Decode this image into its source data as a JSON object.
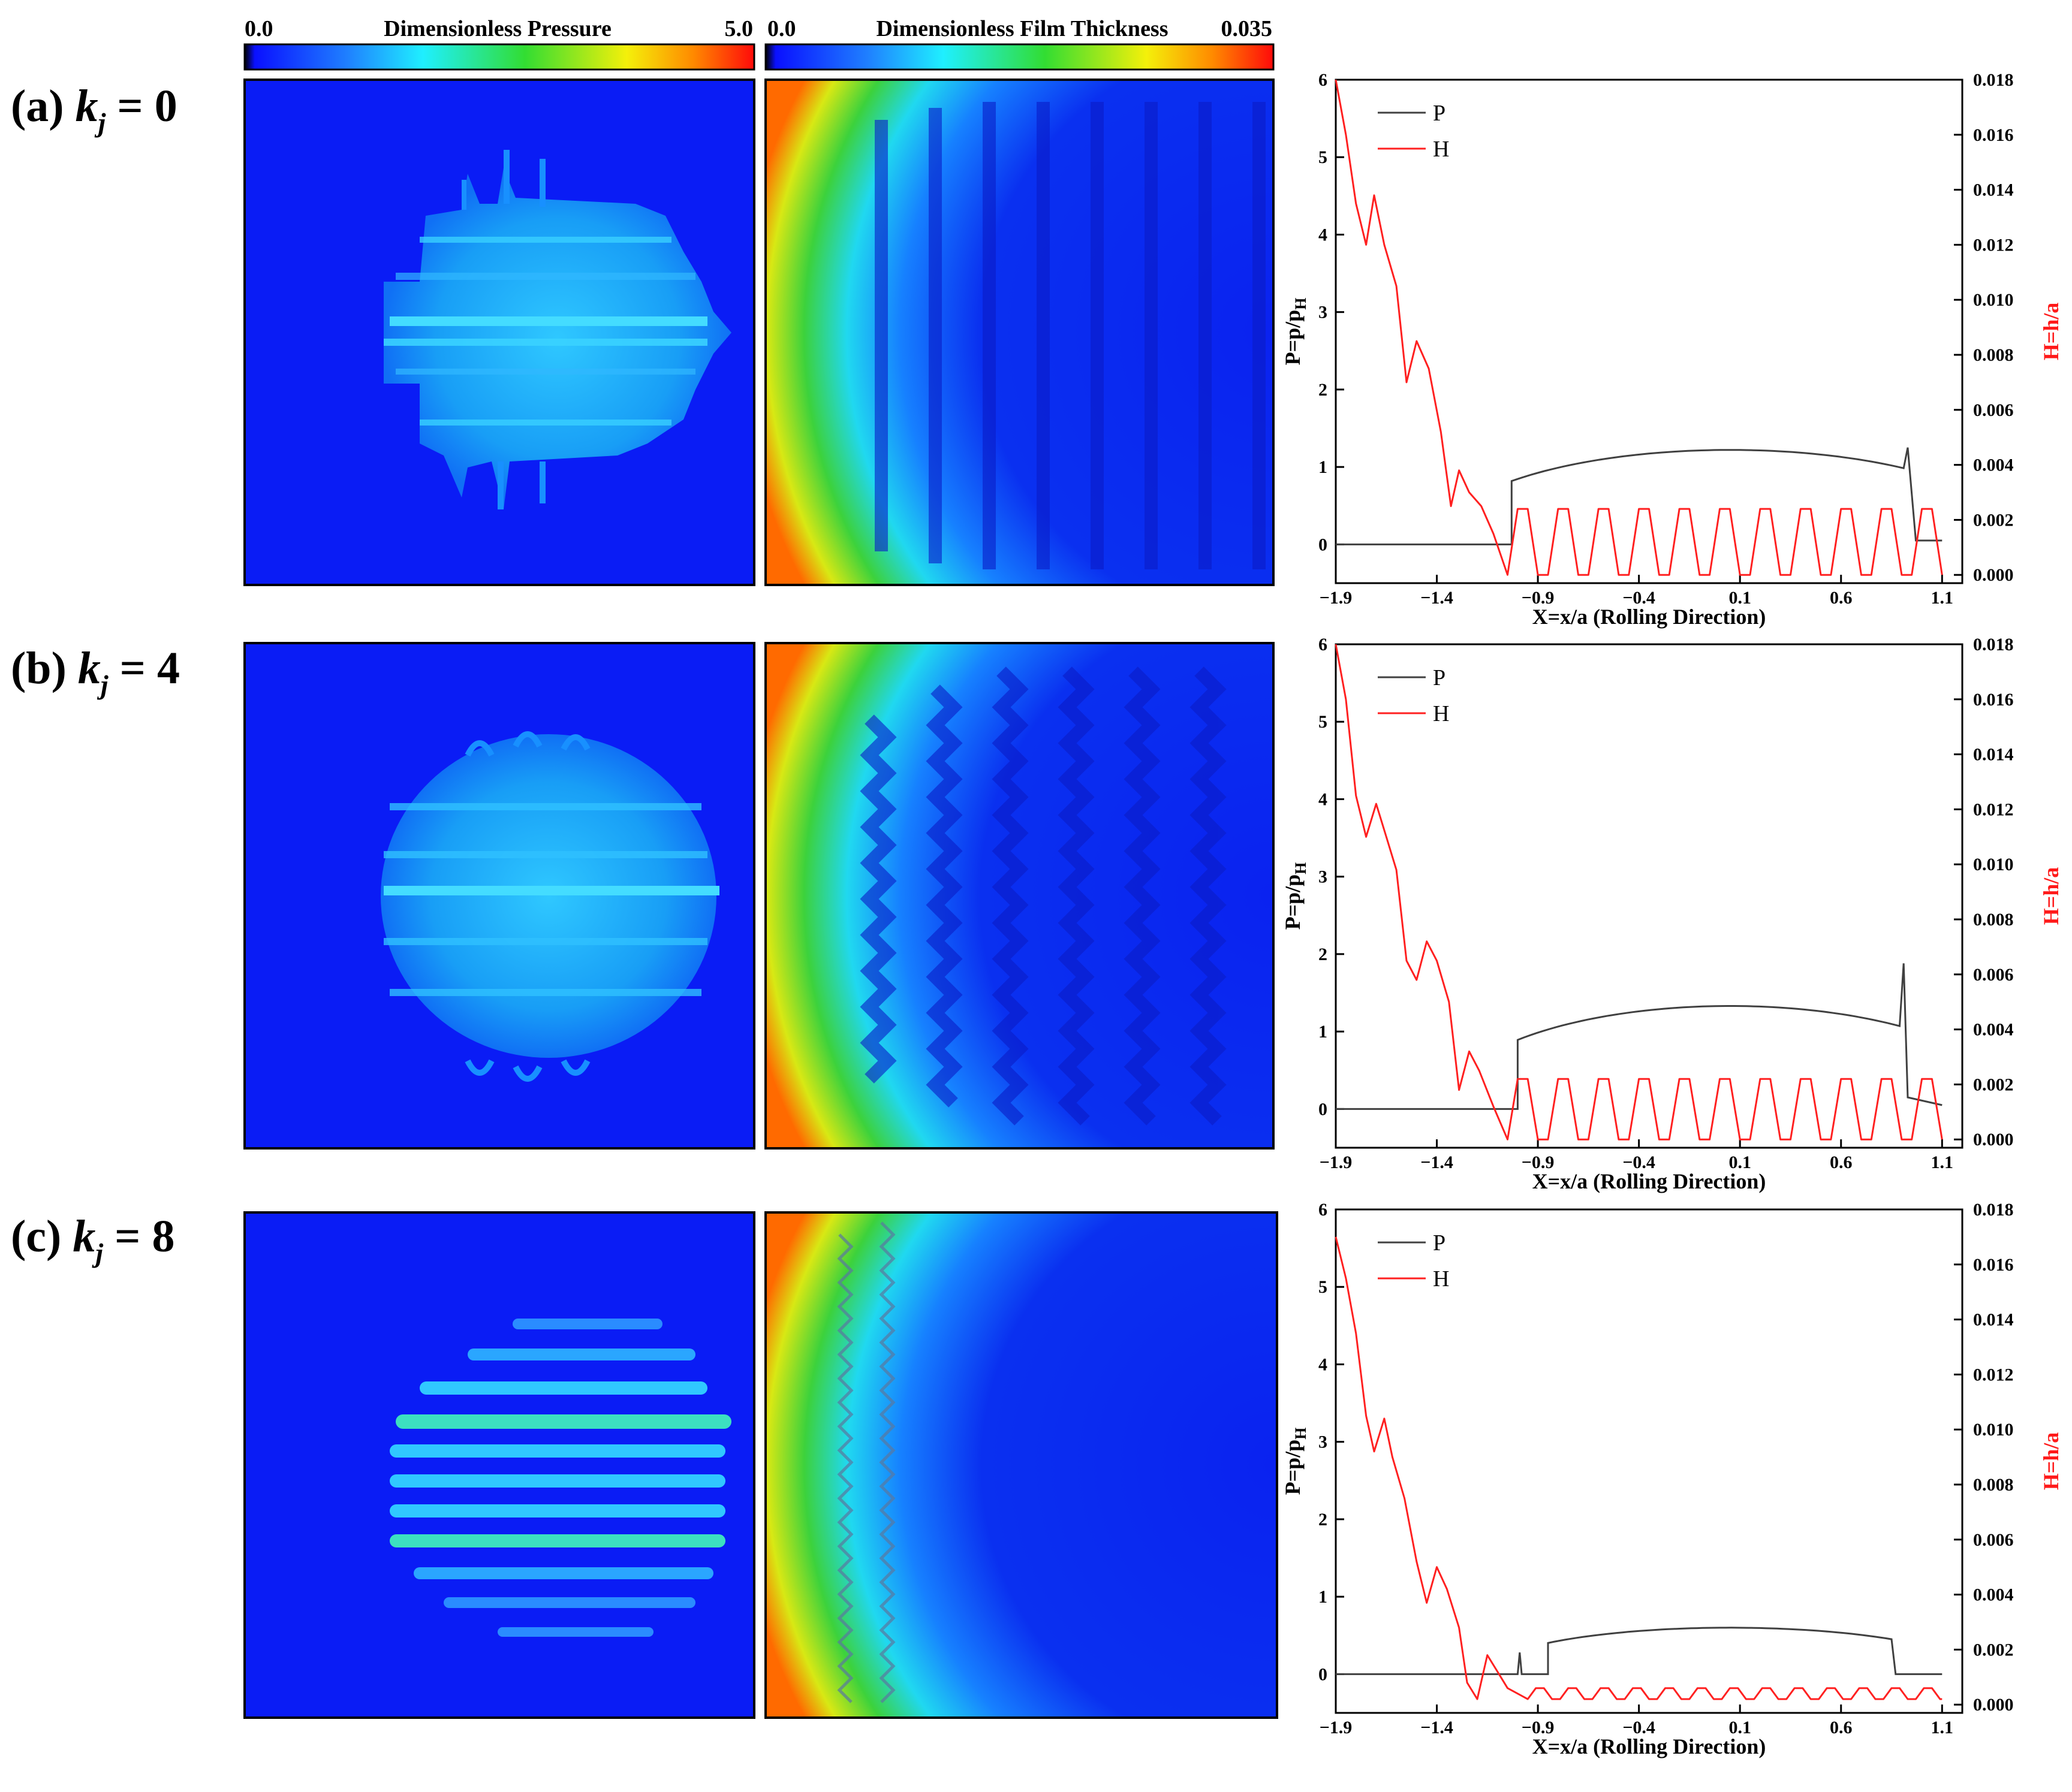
{
  "colorbars": [
    {
      "min_label": "0.0",
      "title": "Dimensionless Pressure",
      "max_label": "5.0"
    },
    {
      "min_label": "0.0",
      "title": "Dimensionless Film Thickness",
      "max_label": "0.035"
    }
  ],
  "row_labels": [
    {
      "prefix": "(a)",
      "k": "k",
      "sub": "j",
      "rest": " = 0"
    },
    {
      "prefix": "(b)",
      "k": "k",
      "sub": "j",
      "rest": " = 4"
    },
    {
      "prefix": "(c)",
      "k": "k",
      "sub": "j",
      "rest": " = 8"
    }
  ],
  "colors": {
    "map_background": "#0a1cf5",
    "pressure_series": "#404040",
    "film_series": "#ff2020",
    "right_axis_label": "#ff1a1a"
  },
  "chart_data": [
    {
      "type": "line",
      "panel": "(a)",
      "xlabel": "X=x/a (Rolling Direction)",
      "ylabel_left": "P=p/pH",
      "ylabel_right": "H=h/a",
      "xlim": [
        -1.9,
        1.2
      ],
      "ylim_left": [
        -0.5,
        6
      ],
      "ylim_right": [
        -0.0003,
        0.018
      ],
      "xticks": [
        "-1.9",
        "-1.4",
        "-0.9",
        "-0.4",
        "0.1",
        "0.6",
        "1.1"
      ],
      "yticks_left": [
        "0",
        "1",
        "2",
        "3",
        "4",
        "5",
        "6"
      ],
      "yticks_right": [
        "0.000",
        "0.002",
        "0.004",
        "0.006",
        "0.008",
        "0.010",
        "0.012",
        "0.014",
        "0.016",
        "0.018"
      ],
      "legend": [
        "P",
        "H"
      ],
      "pressure": {
        "x_start": -1.03,
        "cap_max": 1.22,
        "cap_x": 0.05,
        "spike_x": 0.93,
        "spike_val": 1.25,
        "end_x": 0.97,
        "end_val": 0.05
      },
      "film_left": [
        [
          -1.9,
          0.018
        ],
        [
          -1.85,
          0.016
        ],
        [
          -1.8,
          0.0135
        ],
        [
          -1.75,
          0.012
        ],
        [
          -1.71,
          0.0138
        ],
        [
          -1.66,
          0.012
        ],
        [
          -1.6,
          0.0105
        ],
        [
          -1.55,
          0.007
        ],
        [
          -1.5,
          0.0085
        ],
        [
          -1.44,
          0.0075
        ],
        [
          -1.38,
          0.0052
        ],
        [
          -1.33,
          0.0025
        ],
        [
          -1.29,
          0.0038
        ],
        [
          -1.24,
          0.003
        ],
        [
          -1.18,
          0.0025
        ],
        [
          -1.12,
          0.0015
        ]
      ],
      "film_wave": {
        "x_start": -1.05,
        "x_end": 1.05,
        "low": 0.0,
        "high": 0.0024,
        "period": 0.2
      }
    },
    {
      "type": "line",
      "panel": "(b)",
      "xlabel": "X=x/a (Rolling Direction)",
      "ylabel_left": "P=p/pH",
      "ylabel_right": "H=h/a",
      "xlim": [
        -1.9,
        1.2
      ],
      "ylim_left": [
        -0.5,
        6
      ],
      "ylim_right": [
        -0.0003,
        0.018
      ],
      "xticks": [
        "-1.9",
        "-1.4",
        "-0.9",
        "-0.4",
        "0.1",
        "0.6",
        "1.1"
      ],
      "yticks_left": [
        "0",
        "1",
        "2",
        "3",
        "4",
        "5",
        "6"
      ],
      "yticks_right": [
        "0.000",
        "0.002",
        "0.004",
        "0.006",
        "0.008",
        "0.010",
        "0.012",
        "0.014",
        "0.016",
        "0.018"
      ],
      "legend": [
        "P",
        "H"
      ],
      "pressure": {
        "x_start": -1.0,
        "cap_max": 1.33,
        "cap_x": 0.05,
        "spike_x": 0.91,
        "spike_val": 1.88,
        "end_x": 0.93,
        "end_val": 0.15
      },
      "film_left": [
        [
          -1.9,
          0.018
        ],
        [
          -1.85,
          0.016
        ],
        [
          -1.8,
          0.0125
        ],
        [
          -1.75,
          0.011
        ],
        [
          -1.7,
          0.0122
        ],
        [
          -1.65,
          0.011
        ],
        [
          -1.6,
          0.0098
        ],
        [
          -1.55,
          0.0065
        ],
        [
          -1.5,
          0.0058
        ],
        [
          -1.45,
          0.0072
        ],
        [
          -1.4,
          0.0065
        ],
        [
          -1.34,
          0.005
        ],
        [
          -1.29,
          0.0018
        ],
        [
          -1.24,
          0.0032
        ],
        [
          -1.19,
          0.0025
        ],
        [
          -1.12,
          0.0012
        ]
      ],
      "film_wave": {
        "x_start": -1.05,
        "x_end": 1.05,
        "low": 0.0,
        "high": 0.0022,
        "period": 0.2
      }
    },
    {
      "type": "line",
      "panel": "(c)",
      "xlabel": "X=x/a (Rolling Direction)",
      "ylabel_left": "P=p/pH",
      "ylabel_right": "H=h/a",
      "xlim": [
        -1.9,
        1.2
      ],
      "ylim_left": [
        -0.5,
        6
      ],
      "ylim_right": [
        -0.0003,
        0.018
      ],
      "xticks": [
        "-1.9",
        "-1.4",
        "-0.9",
        "-0.4",
        "0.1",
        "0.6",
        "1.1"
      ],
      "yticks_left": [
        "0",
        "1",
        "2",
        "3",
        "4",
        "5",
        "6"
      ],
      "yticks_right": [
        "0.000",
        "0.002",
        "0.004",
        "0.006",
        "0.008",
        "0.010",
        "0.012",
        "0.014",
        "0.016",
        "0.018"
      ],
      "legend": [
        "P",
        "H"
      ],
      "pressure": {
        "x_start": -0.85,
        "cap_max": 0.6,
        "cap_x": 0.05,
        "spike_x": -0.99,
        "spike_val": 0.28,
        "end_x": 0.85,
        "end_val": 0.0
      },
      "film_left": [
        [
          -1.9,
          0.017
        ],
        [
          -1.85,
          0.0155
        ],
        [
          -1.8,
          0.0135
        ],
        [
          -1.75,
          0.0105
        ],
        [
          -1.71,
          0.0092
        ],
        [
          -1.66,
          0.0104
        ],
        [
          -1.62,
          0.009
        ],
        [
          -1.56,
          0.0075
        ],
        [
          -1.5,
          0.0052
        ],
        [
          -1.45,
          0.0037
        ],
        [
          -1.4,
          0.005
        ],
        [
          -1.35,
          0.0042
        ],
        [
          -1.29,
          0.0028
        ],
        [
          -1.25,
          0.0008
        ],
        [
          -1.2,
          0.0002
        ],
        [
          -1.15,
          0.0018
        ],
        [
          -1.1,
          0.0012
        ],
        [
          -1.05,
          0.0006
        ]
      ],
      "film_wave": {
        "x_start": -0.95,
        "x_end": 1.1,
        "low": 0.0002,
        "high": 0.0006,
        "period": 0.16
      }
    }
  ]
}
